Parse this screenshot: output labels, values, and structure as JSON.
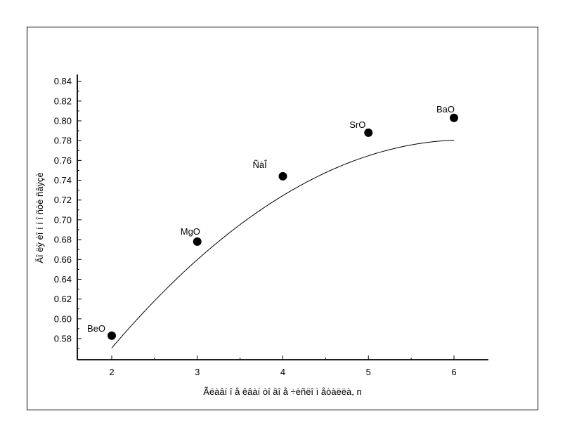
{
  "chart_data": {
    "type": "scatter",
    "title": "",
    "xlabel": "Ãëàâí î å êâàí òî âî å ÷èñëî  ì åòàëëà, n",
    "ylabel": "Äî ëÿ èî í í î ñòè ñâÿçè",
    "xlim": [
      1.6,
      6.4
    ],
    "ylim": [
      0.56,
      0.84
    ],
    "x_ticks": [
      "2",
      "3",
      "4",
      "5",
      "6"
    ],
    "y_ticks": [
      "0.58",
      "0.60",
      "0.62",
      "0.64",
      "0.66",
      "0.68",
      "0.70",
      "0.72",
      "0.74",
      "0.76",
      "0.78",
      "0.80",
      "0.82",
      "0.84"
    ],
    "grid": false,
    "legend": "none",
    "series": [
      {
        "x": [
          2,
          3,
          4,
          5,
          6
        ],
        "y": [
          0.583,
          0.678,
          0.744,
          0.788,
          0.803
        ],
        "labels": [
          "BeO",
          "MgO",
          "ÑàÎ",
          "SrO",
          "BaO"
        ],
        "marker": "filled-circle",
        "color": "#000000"
      }
    ],
    "fit_curve": {
      "type": "quadratic",
      "coefficients": [
        0.3185,
        0.1505,
        -0.01225
      ]
    }
  }
}
